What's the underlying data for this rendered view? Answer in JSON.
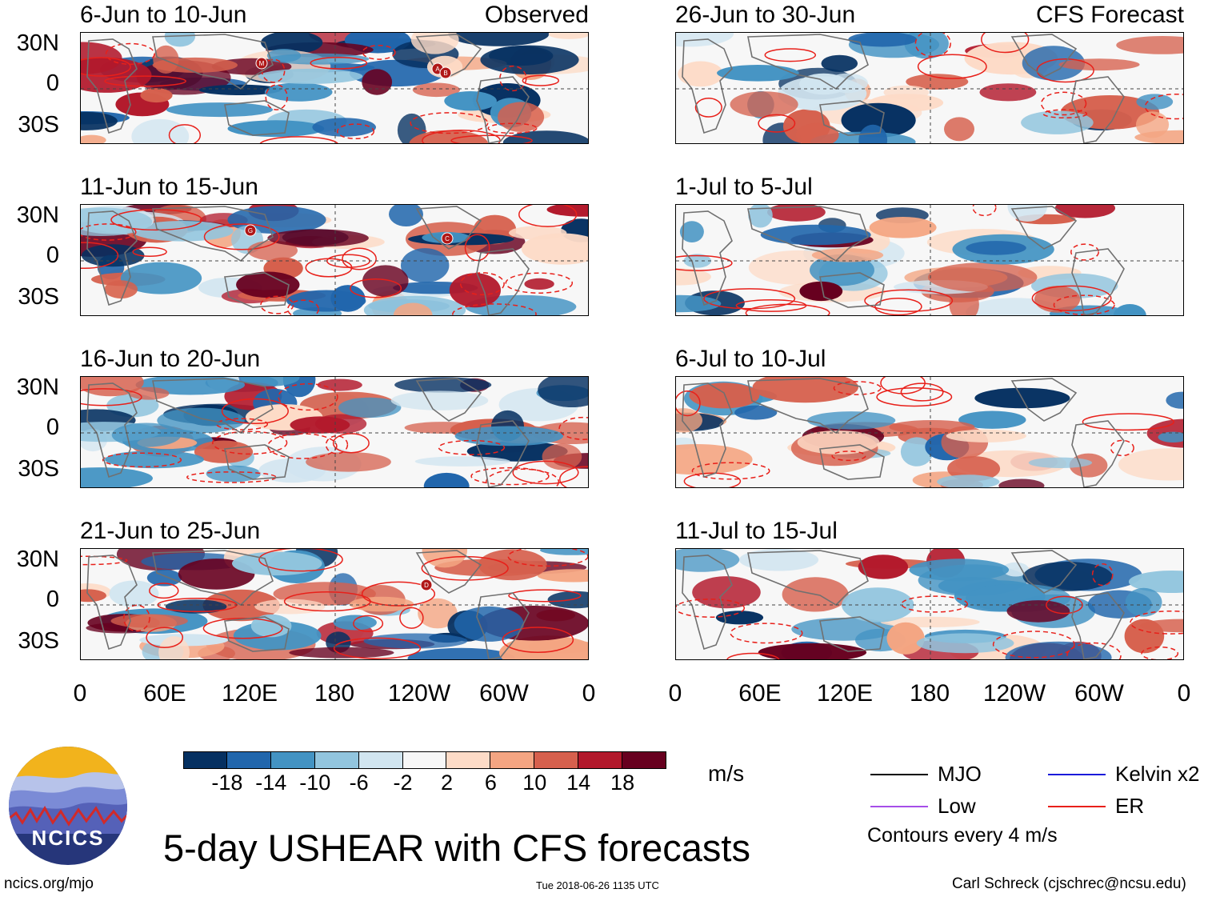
{
  "chart_data": {
    "type": "heatmap",
    "title": "5-day USHEAR with CFS forecasts",
    "units": "m/s",
    "ylabels": [
      "30N",
      "0",
      "30S"
    ],
    "xlabels": [
      "0",
      "60E",
      "120E",
      "180",
      "120W",
      "60W",
      "0"
    ],
    "columns": [
      {
        "source": "Observed",
        "panels": [
          {
            "period": "6-Jun to 10-Jun",
            "storms": [
              "M",
              "A",
              "B"
            ]
          },
          {
            "period": "11-Jun to 15-Jun",
            "storms": [
              "G",
              "C"
            ]
          },
          {
            "period": "16-Jun to 20-Jun",
            "storms": []
          },
          {
            "period": "21-Jun to 25-Jun",
            "storms": [
              "D"
            ]
          }
        ]
      },
      {
        "source": "CFS Forecast",
        "panels": [
          {
            "period": "26-Jun to 30-Jun",
            "storms": []
          },
          {
            "period": "1-Jul to 5-Jul",
            "storms": []
          },
          {
            "period": "6-Jul to 10-Jul",
            "storms": []
          },
          {
            "period": "11-Jul to 15-Jul",
            "storms": []
          }
        ]
      }
    ],
    "colorbar": {
      "ticks": [
        "-18",
        "-14",
        "-10",
        "-6",
        "-2",
        "2",
        "6",
        "10",
        "14",
        "18"
      ],
      "colors": [
        "#053061",
        "#2166ac",
        "#4393c3",
        "#92c5de",
        "#d1e5f0",
        "#f7f7f7",
        "#fddbc7",
        "#f4a582",
        "#d6604d",
        "#b2182b",
        "#67001f"
      ]
    },
    "legend": [
      {
        "label": "MJO",
        "color": "#000000"
      },
      {
        "label": "Kelvin x2",
        "color": "#1a1adb"
      },
      {
        "label": "Low",
        "color": "#a64ee8"
      },
      {
        "label": "ER",
        "color": "#e8201a"
      }
    ],
    "contour_note": "Contours every 4 m/s"
  },
  "footer": {
    "logo_text": "NCICS",
    "url": "ncics.org/mjo",
    "timestamp": "Tue 2018-06-26 1135 UTC",
    "author": "Carl Schreck (cjschrec@ncsu.edu)"
  }
}
